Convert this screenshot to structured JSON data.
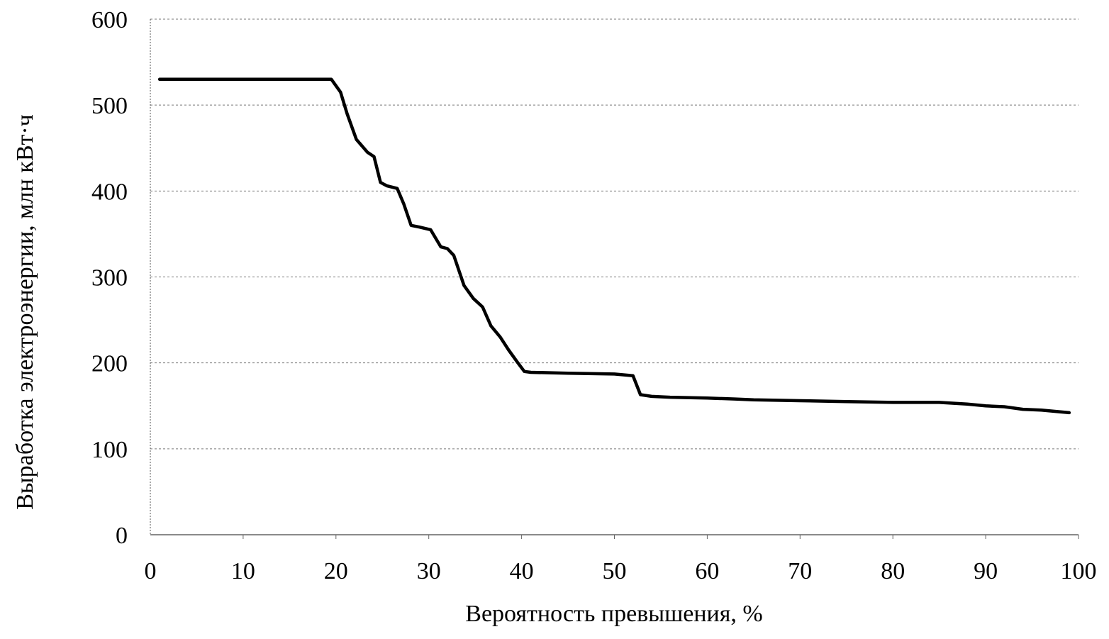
{
  "chart_data": {
    "type": "line",
    "title": "",
    "xlabel": "Вероятность превышения, %",
    "ylabel": "Выработка электроэнергии, млн кВт·ч",
    "xlim": [
      0,
      100
    ],
    "ylim": [
      0,
      600
    ],
    "xticks": [
      0,
      10,
      20,
      30,
      40,
      50,
      60,
      70,
      80,
      90,
      100
    ],
    "yticks": [
      0,
      100,
      200,
      300,
      400,
      500,
      600
    ],
    "xtick_labels": [
      "0",
      "10",
      "20",
      "30",
      "40",
      "50",
      "60",
      "70",
      "80",
      "90",
      "100"
    ],
    "ytick_labels": [
      "0",
      "100",
      "200",
      "300",
      "400",
      "500",
      "600"
    ],
    "grid": {
      "horizontal": true,
      "vertical": false,
      "style": "dotted"
    },
    "legend": null,
    "series": [
      {
        "name": "Выработка электроэнергии",
        "color": "#000000",
        "x": [
          1,
          5,
          10,
          15,
          19.5,
          20.5,
          21.2,
          22.2,
          23.4,
          24.1,
          24.8,
          25.5,
          26.6,
          27.3,
          28.1,
          29.0,
          30.2,
          31.3,
          32.0,
          32.7,
          33.8,
          34.8,
          35.8,
          36.7,
          37.7,
          38.6,
          39.6,
          40.3,
          41.0,
          45,
          50,
          52.0,
          52.8,
          54,
          56,
          60,
          63,
          65,
          70,
          75,
          80,
          85,
          88,
          90,
          92,
          94,
          96,
          99
        ],
        "y": [
          530,
          530,
          530,
          530,
          530,
          515,
          490,
          460,
          445,
          440,
          410,
          406,
          403,
          385,
          360,
          358,
          355,
          335,
          333,
          325,
          290,
          275,
          265,
          243,
          230,
          215,
          200,
          190,
          189,
          188,
          187,
          185,
          163,
          161,
          160,
          159,
          158,
          157,
          156,
          155,
          154,
          154,
          152,
          150,
          149,
          146,
          145,
          142
        ]
      }
    ]
  }
}
